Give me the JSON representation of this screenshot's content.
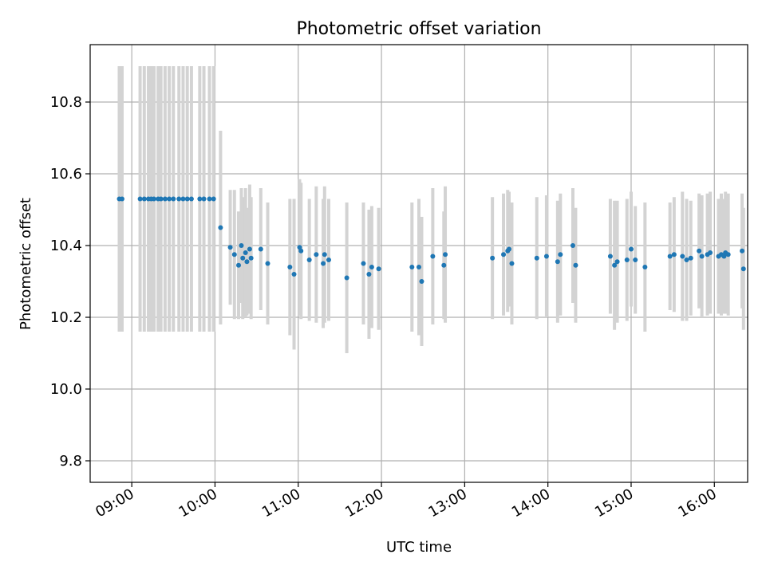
{
  "chart_data": {
    "type": "scatter",
    "title": "Photometric offset variation",
    "xlabel": "UTC time",
    "ylabel": "Photometric offset",
    "xlim": [
      "08:30",
      "16:24"
    ],
    "ylim": [
      9.74,
      10.96
    ],
    "grid": true,
    "x_ticks": [
      "09:00",
      "10:00",
      "11:00",
      "12:00",
      "13:00",
      "14:00",
      "15:00",
      "16:00"
    ],
    "y_ticks": [
      "9.8",
      "10.0",
      "10.2",
      "10.4",
      "10.6",
      "10.8"
    ],
    "colors": {
      "marker": "#1f77b4",
      "errorbar": "#d3d3d3",
      "grid": "#b0b0b0"
    },
    "series": [
      {
        "points": [
          [
            "08:51",
            10.53,
            0.37
          ],
          [
            "08:53",
            10.53,
            0.37
          ],
          [
            "09:06",
            10.53,
            0.37
          ],
          [
            "09:09",
            10.53,
            0.37
          ],
          [
            "09:12",
            10.53,
            0.37
          ],
          [
            "09:14",
            10.53,
            0.37
          ],
          [
            "09:16",
            10.53,
            0.37
          ],
          [
            "09:19",
            10.53,
            0.37
          ],
          [
            "09:21",
            10.53,
            0.37
          ],
          [
            "09:24",
            10.53,
            0.37
          ],
          [
            "09:27",
            10.53,
            0.37
          ],
          [
            "09:30",
            10.53,
            0.37
          ],
          [
            "09:34",
            10.53,
            0.37
          ],
          [
            "09:37",
            10.53,
            0.37
          ],
          [
            "09:40",
            10.53,
            0.37
          ],
          [
            "09:43",
            10.53,
            0.37
          ],
          [
            "09:49",
            10.53,
            0.37
          ],
          [
            "09:52",
            10.53,
            0.37
          ],
          [
            "09:56",
            10.53,
            0.37
          ],
          [
            "09:59",
            10.53,
            0.37
          ],
          [
            "10:04",
            10.45,
            0.27
          ],
          [
            "10:11",
            10.395,
            0.16
          ],
          [
            "10:14",
            10.375,
            0.18
          ],
          [
            "10:17",
            10.345,
            0.15
          ],
          [
            "10:19",
            10.4,
            0.16
          ],
          [
            "10:20",
            10.365,
            0.17
          ],
          [
            "10:22",
            10.38,
            0.18
          ],
          [
            "10:23",
            10.355,
            0.15
          ],
          [
            "10:25",
            10.39,
            0.18
          ],
          [
            "10:26",
            10.365,
            0.17
          ],
          [
            "10:33",
            10.39,
            0.17
          ],
          [
            "10:38",
            10.35,
            0.17
          ],
          [
            "10:54",
            10.34,
            0.19
          ],
          [
            "10:57",
            10.32,
            0.21
          ],
          [
            "11:01",
            10.395,
            0.19
          ],
          [
            "11:02",
            10.385,
            0.19
          ],
          [
            "11:08",
            10.36,
            0.17
          ],
          [
            "11:13",
            10.375,
            0.19
          ],
          [
            "11:18",
            10.35,
            0.18
          ],
          [
            "11:19",
            10.375,
            0.19
          ],
          [
            "11:22",
            10.36,
            0.17
          ],
          [
            "11:35",
            10.31,
            0.21
          ],
          [
            "11:47",
            10.35,
            0.17
          ],
          [
            "11:51",
            10.32,
            0.18
          ],
          [
            "11:53",
            10.34,
            0.17
          ],
          [
            "11:58",
            10.335,
            0.17
          ],
          [
            "12:22",
            10.34,
            0.18
          ],
          [
            "12:27",
            10.34,
            0.19
          ],
          [
            "12:29",
            10.3,
            0.18
          ],
          [
            "12:37",
            10.37,
            0.19
          ],
          [
            "12:45",
            10.345,
            0.15
          ],
          [
            "12:46",
            10.375,
            0.19
          ],
          [
            "13:20",
            10.365,
            0.17
          ],
          [
            "13:28",
            10.375,
            0.17
          ],
          [
            "13:31",
            10.385,
            0.17
          ],
          [
            "13:32",
            10.39,
            0.16
          ],
          [
            "13:34",
            10.35,
            0.17
          ],
          [
            "13:52",
            10.365,
            0.17
          ],
          [
            "13:59",
            10.37,
            0.17
          ],
          [
            "14:07",
            10.355,
            0.17
          ],
          [
            "14:09",
            10.375,
            0.17
          ],
          [
            "14:18",
            10.4,
            0.16
          ],
          [
            "14:20",
            10.345,
            0.16
          ],
          [
            "14:45",
            10.37,
            0.16
          ],
          [
            "14:48",
            10.345,
            0.18
          ],
          [
            "14:50",
            10.355,
            0.17
          ],
          [
            "14:57",
            10.36,
            0.17
          ],
          [
            "15:00",
            10.39,
            0.16
          ],
          [
            "15:03",
            10.36,
            0.15
          ],
          [
            "15:10",
            10.34,
            0.18
          ],
          [
            "15:28",
            10.37,
            0.15
          ],
          [
            "15:31",
            10.375,
            0.16
          ],
          [
            "15:37",
            10.37,
            0.18
          ],
          [
            "15:40",
            10.36,
            0.17
          ],
          [
            "15:43",
            10.365,
            0.16
          ],
          [
            "15:49",
            10.385,
            0.16
          ],
          [
            "15:51",
            10.37,
            0.17
          ],
          [
            "15:55",
            10.375,
            0.17
          ],
          [
            "15:57",
            10.38,
            0.17
          ],
          [
            "16:03",
            10.37,
            0.16
          ],
          [
            "16:05",
            10.375,
            0.17
          ],
          [
            "16:07",
            10.37,
            0.16
          ],
          [
            "16:08",
            10.38,
            0.17
          ],
          [
            "16:10",
            10.375,
            0.17
          ],
          [
            "16:20",
            10.385,
            0.16
          ],
          [
            "16:21",
            10.335,
            0.17
          ]
        ]
      }
    ]
  }
}
